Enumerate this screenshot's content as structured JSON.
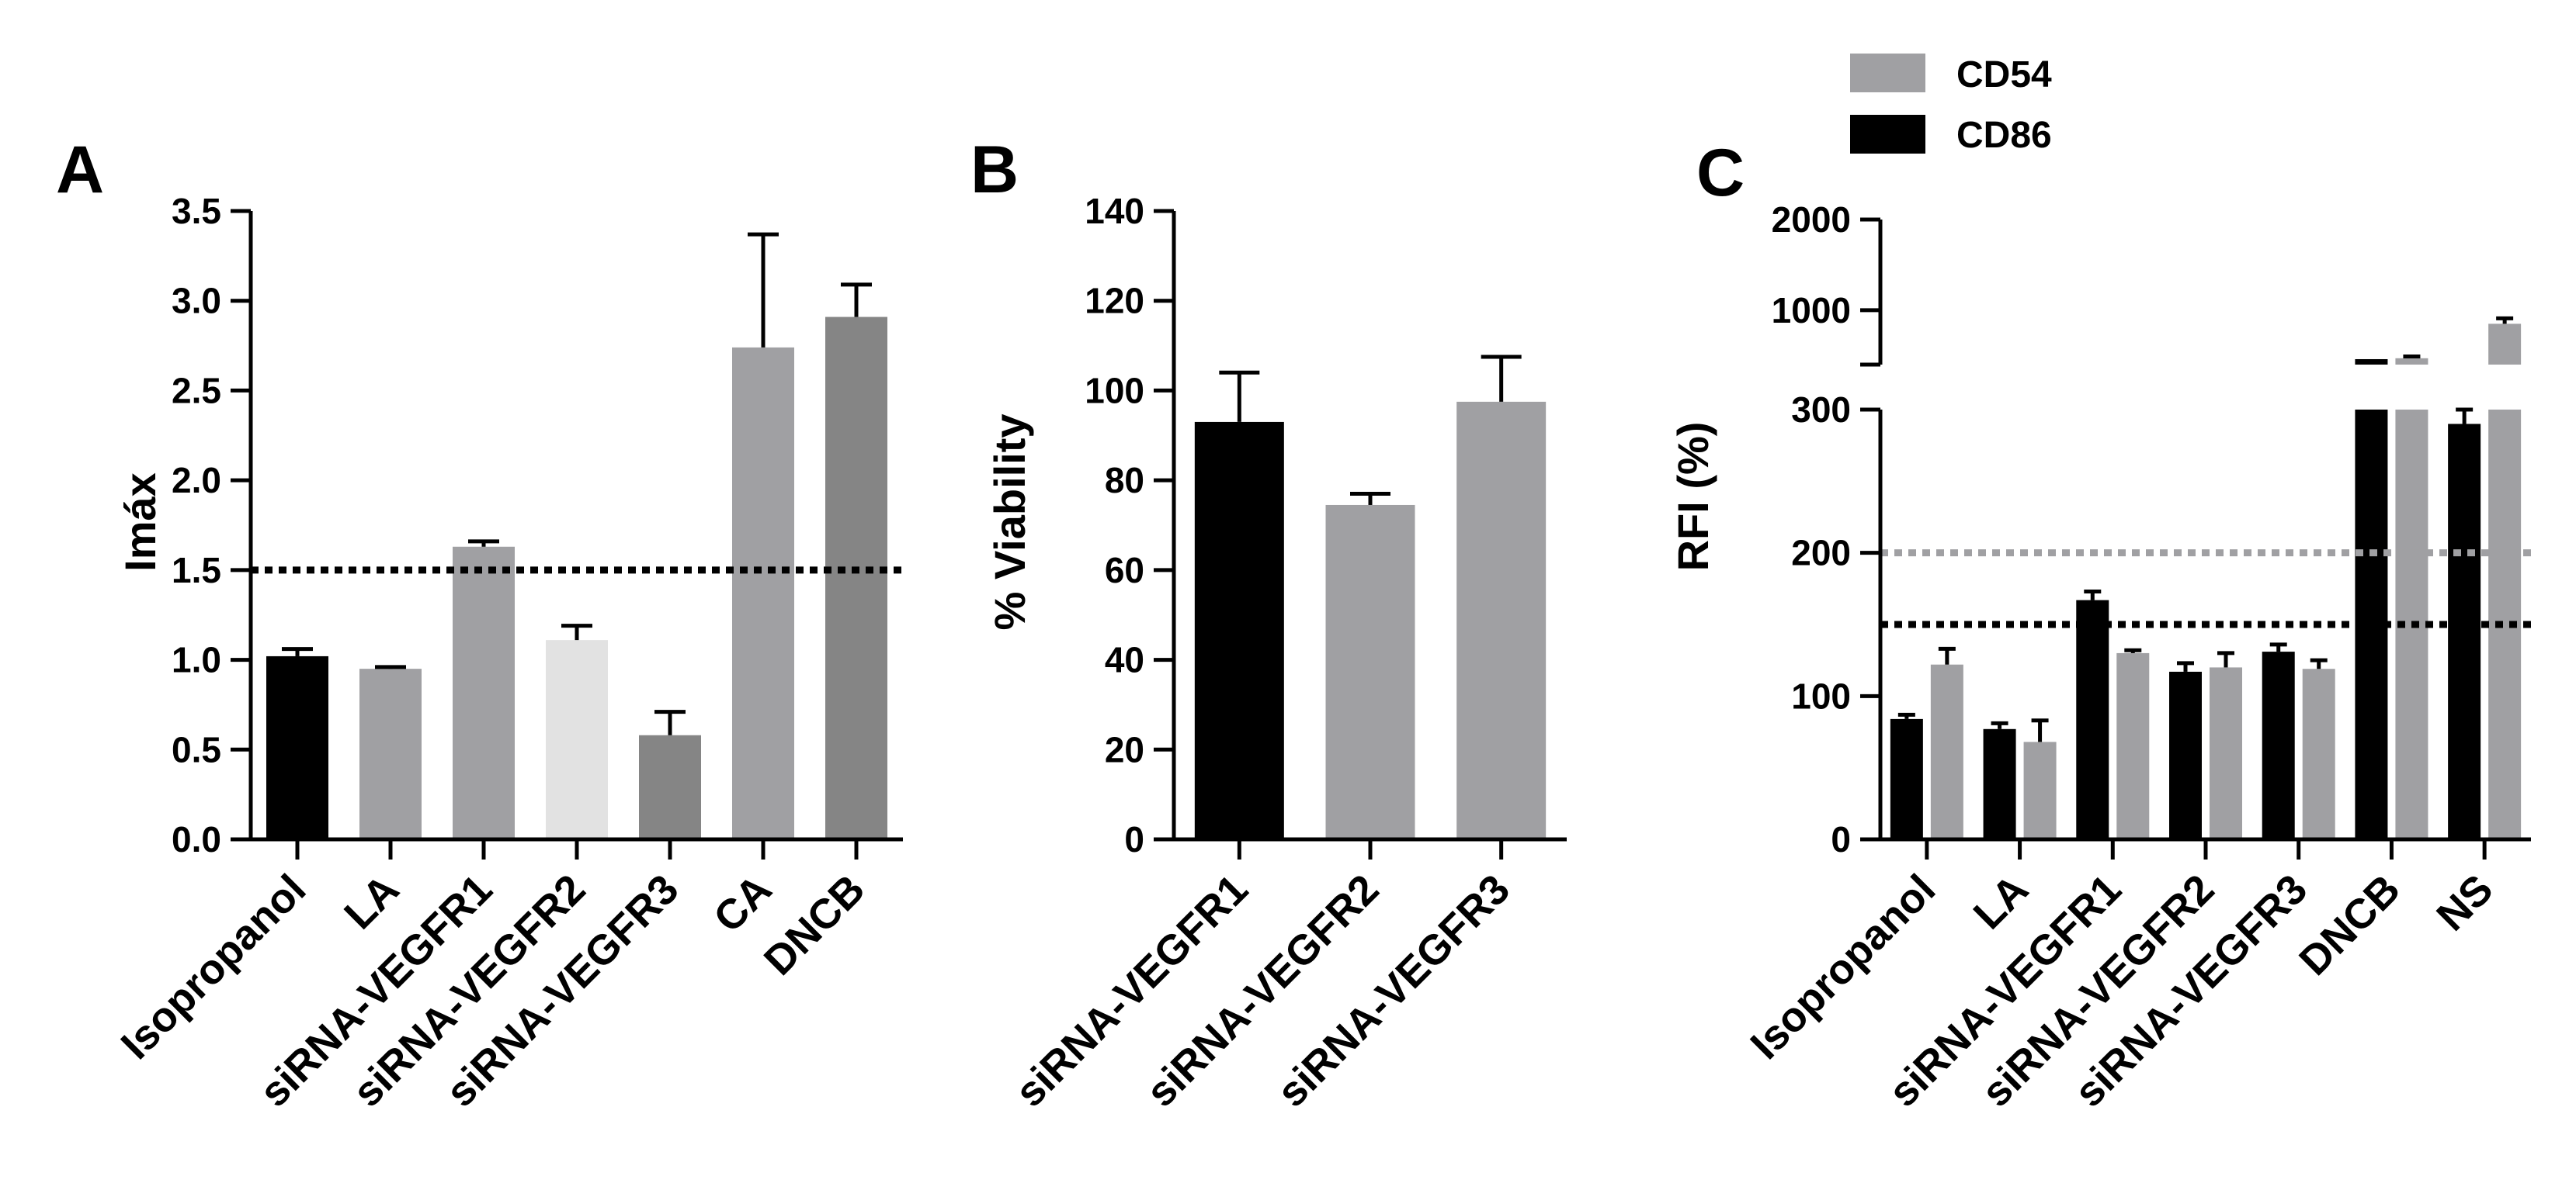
{
  "chart_data": [
    {
      "panel_label": "A",
      "type": "bar",
      "ylabel": "Imáx",
      "ylim": [
        0,
        3.5
      ],
      "yticks": [
        0.0,
        0.5,
        1.0,
        1.5,
        2.0,
        2.5,
        3.0,
        3.5
      ],
      "ytick_labels": [
        "0.0",
        "0.5",
        "1.0",
        "1.5",
        "2.0",
        "2.5",
        "3.0",
        "3.5"
      ],
      "categories": [
        "Isopropanol",
        "LA",
        "siRNA-VEGFR1",
        "siRNA-VEGFR2",
        "siRNA-VEGFR3",
        "CA",
        "DNCB"
      ],
      "values": [
        1.02,
        0.95,
        1.63,
        1.11,
        0.58,
        2.74,
        2.91
      ],
      "errors": [
        0.04,
        0.01,
        0.03,
        0.08,
        0.13,
        0.63,
        0.18
      ],
      "colors": [
        "#000000",
        "#a0a0a3",
        "#a0a0a3",
        "#e2e2e2",
        "#858585",
        "#a0a0a3",
        "#858585"
      ],
      "threshold_lines": [
        {
          "value": 1.5,
          "color": "#000000"
        }
      ]
    },
    {
      "panel_label": "B",
      "type": "bar",
      "ylabel": "% Viability",
      "ylim": [
        0,
        140
      ],
      "yticks": [
        0,
        20,
        40,
        60,
        80,
        100,
        120,
        140
      ],
      "ytick_labels": [
        "0",
        "20",
        "40",
        "60",
        "80",
        "100",
        "120",
        "140"
      ],
      "categories": [
        "siRNA-VEGFR1",
        "siRNA-VEGFR2",
        "siRNA-VEGFR3"
      ],
      "values": [
        93,
        74.5,
        97.5
      ],
      "errors": [
        11,
        2.5,
        10
      ],
      "colors": [
        "#000000",
        "#a0a0a3",
        "#a0a0a3"
      ]
    },
    {
      "panel_label": "C",
      "type": "bar",
      "ylabel": "RFI (%)",
      "broken_axis": true,
      "lower_ylim": [
        0,
        300
      ],
      "lower_ticks": [
        0,
        100,
        200,
        300
      ],
      "lower_tick_labels": [
        "0",
        "100",
        "200",
        "300"
      ],
      "upper_ylim": [
        400,
        2000
      ],
      "upper_ticks": [
        1000,
        2000
      ],
      "upper_tick_labels": [
        "1000",
        "2000"
      ],
      "categories": [
        "Isopropanol",
        "LA",
        "siRNA-VEGFR1",
        "siRNA-VEGFR2",
        "siRNA-VEGFR3",
        "DNCB",
        "NS"
      ],
      "series": [
        {
          "name": "CD86",
          "color": "#000000",
          "values": [
            84,
            77,
            167,
            117,
            131,
            460,
            290
          ],
          "errors": [
            3,
            4,
            6,
            6,
            5,
            0,
            10
          ]
        },
        {
          "name": "CD54",
          "color": "#a0a0a3",
          "values": [
            122,
            68,
            130,
            120,
            119,
            470,
            850
          ],
          "errors": [
            11,
            15,
            2,
            10,
            6,
            20,
            60
          ]
        }
      ],
      "legend_order": [
        "CD54",
        "CD86"
      ],
      "threshold_lines": [
        {
          "value": 200,
          "color": "#a0a0a3"
        },
        {
          "value": 150,
          "color": "#000000"
        }
      ]
    }
  ]
}
